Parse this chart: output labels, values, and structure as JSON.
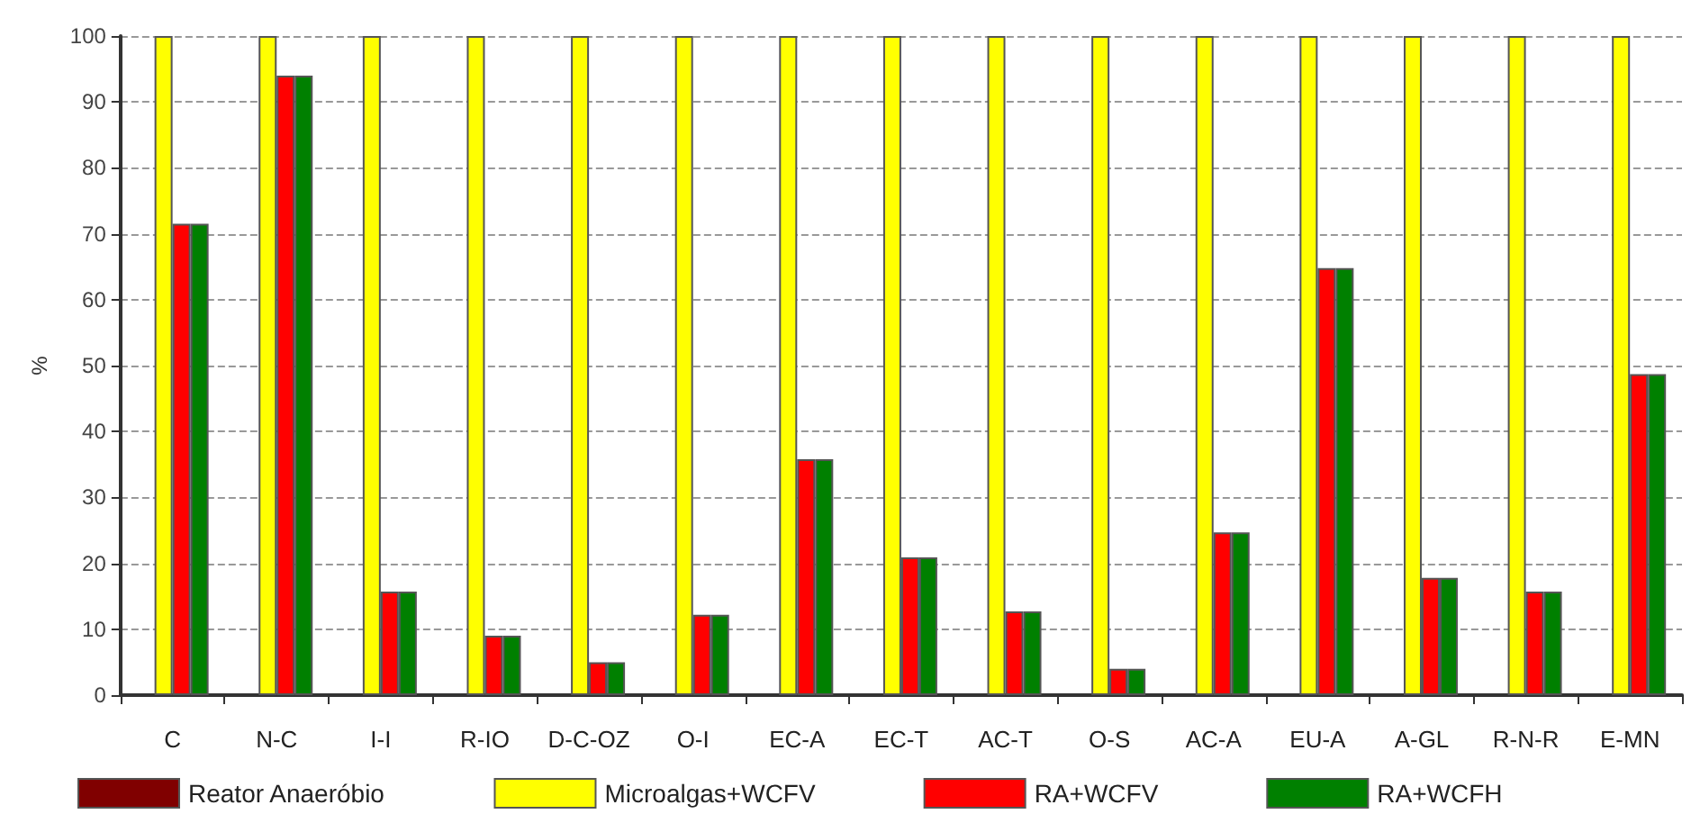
{
  "chart_data": {
    "type": "bar",
    "ylabel": "%",
    "categories": [
      "C",
      "N-C",
      "I-I",
      "R-IO",
      "D-C-OZ",
      "O-I",
      "EC-A",
      "EC-T",
      "AC-T",
      "O-S",
      "AC-A",
      "EU-A",
      "A-GL",
      "R-N-R",
      "E-MN"
    ],
    "series": [
      {
        "name": "Reator Anaeróbio",
        "color": "#800000",
        "values": [
          null,
          null,
          null,
          null,
          null,
          null,
          null,
          null,
          null,
          null,
          null,
          null,
          null,
          null,
          null
        ]
      },
      {
        "name": "Microalgas+WCFV",
        "color": "#ffff00",
        "values": [
          100,
          100,
          100,
          100,
          100,
          100,
          100,
          100,
          100,
          100,
          100,
          100,
          100,
          100,
          100
        ]
      },
      {
        "name": "RA+WCFV",
        "color": "#ff0000",
        "values": [
          71.5,
          94,
          15.7,
          9,
          5,
          12.2,
          35.8,
          20.9,
          12.7,
          4,
          24.7,
          64.8,
          17.8,
          15.7,
          48.7
        ]
      },
      {
        "name": "RA+WCFH",
        "color": "#008000",
        "values": [
          71.5,
          94,
          15.7,
          9,
          5,
          12.2,
          35.8,
          20.9,
          12.7,
          4,
          24.7,
          64.8,
          17.8,
          15.7,
          48.7
        ]
      }
    ],
    "ylim": [
      0,
      100
    ],
    "yticks": [
      0,
      10,
      20,
      30,
      40,
      50,
      60,
      70,
      80,
      90,
      100
    ],
    "grid": "y",
    "legend": "bottom"
  }
}
